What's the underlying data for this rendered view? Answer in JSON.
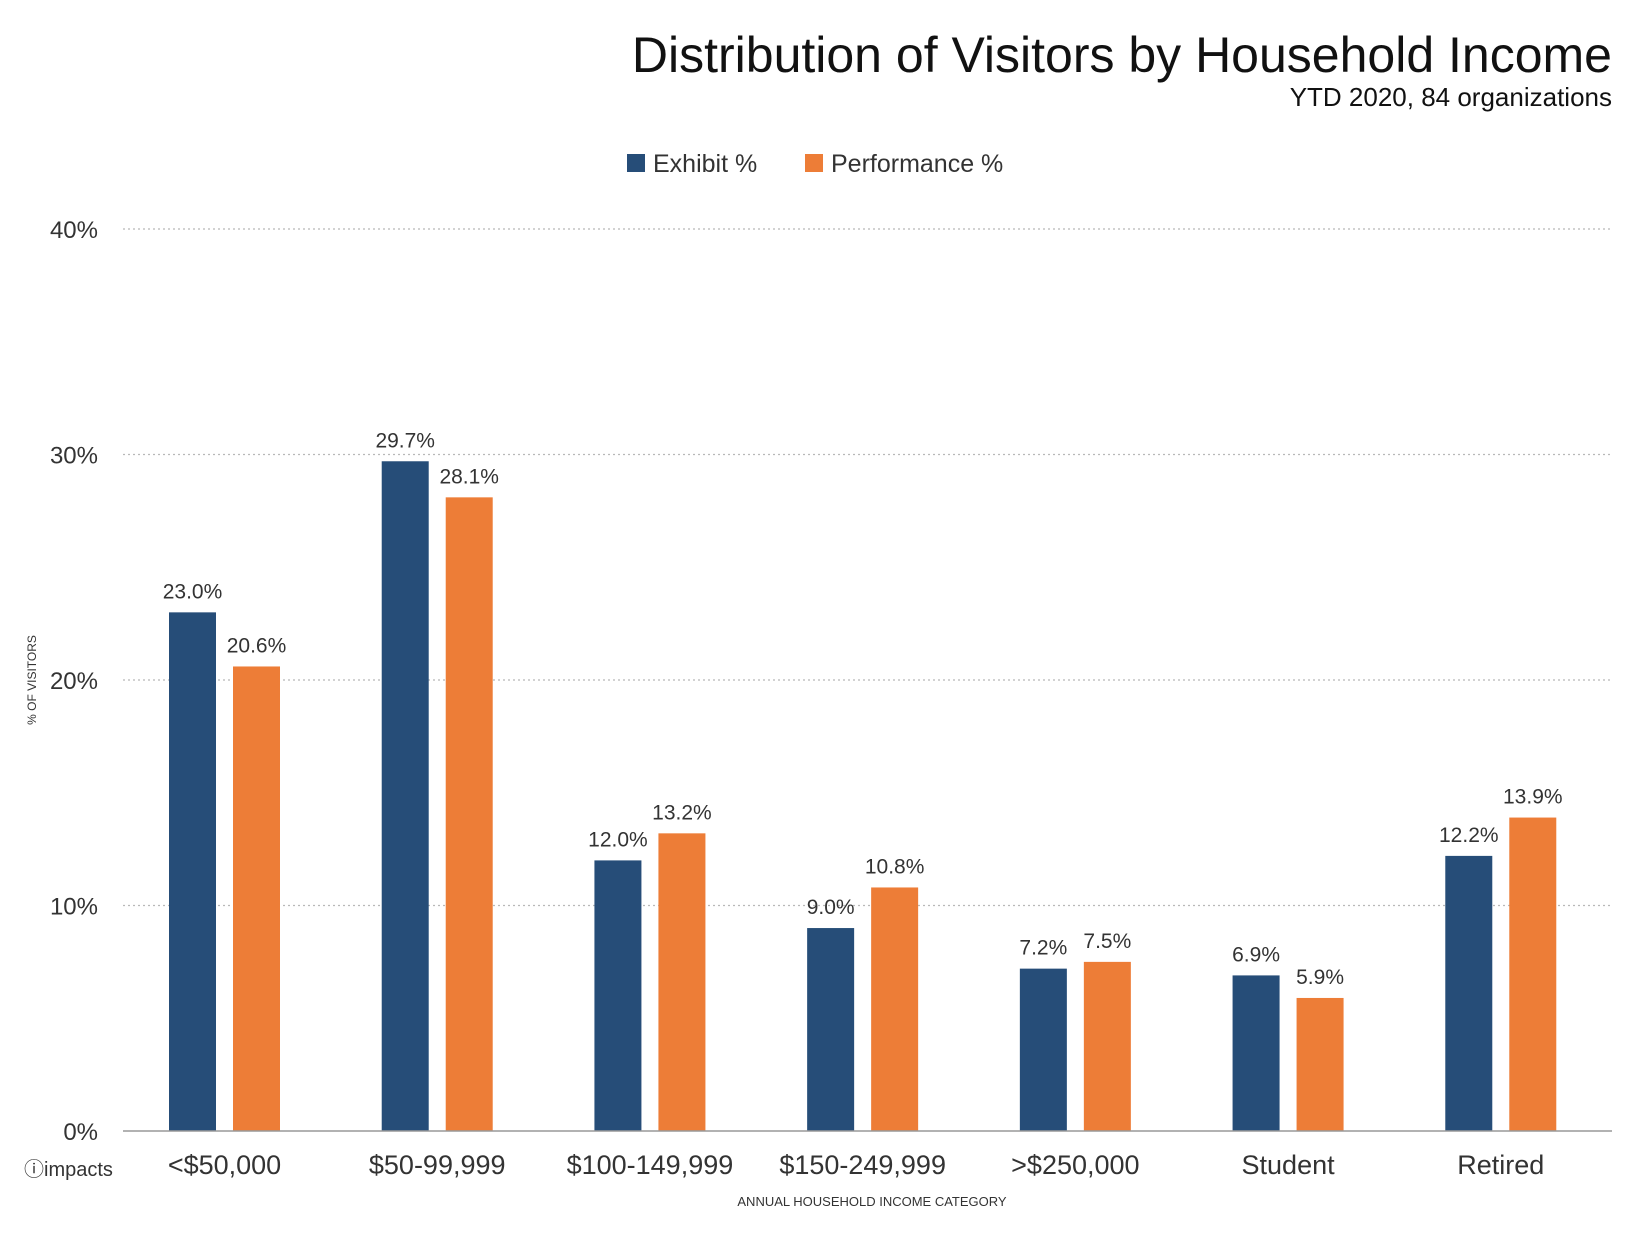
{
  "brand": {
    "name": "impacts",
    "icon": "impacts-logo-icon"
  },
  "colors": {
    "exhibit": "#264d78",
    "performance": "#ed7d37",
    "grid": "#b8b8b8",
    "axis": "#999999",
    "text": "#333333"
  },
  "chart_data": {
    "type": "bar",
    "title": "Distribution of Visitors by Household Income",
    "subtitle": "YTD 2020, 84 organizations",
    "xlabel": "ANNUAL HOUSEHOLD INCOME CATEGORY",
    "ylabel": "% OF VISITORS",
    "ylim": [
      0,
      40
    ],
    "yticks": [
      0,
      10,
      20,
      30,
      40
    ],
    "ytick_labels": [
      "0%",
      "10%",
      "20%",
      "30%",
      "40%"
    ],
    "grid": true,
    "legend_position": "top-center",
    "categories": [
      "<$50,000",
      "$50-99,999",
      "$100-149,999",
      "$150-249,999",
      ">$250,000",
      "Student",
      "Retired"
    ],
    "series": [
      {
        "name": "Exhibit %",
        "values": [
          23.0,
          29.7,
          12.0,
          9.0,
          7.2,
          6.9,
          12.2
        ],
        "labels": [
          "23.0%",
          "29.7%",
          "12.0%",
          "9.0%",
          "7.2%",
          "6.9%",
          "12.2%"
        ]
      },
      {
        "name": "Performance %",
        "values": [
          20.6,
          28.1,
          13.2,
          10.8,
          7.5,
          5.9,
          13.9
        ],
        "labels": [
          "20.6%",
          "28.1%",
          "13.2%",
          "10.8%",
          "7.5%",
          "5.9%",
          "13.9%"
        ]
      }
    ]
  }
}
